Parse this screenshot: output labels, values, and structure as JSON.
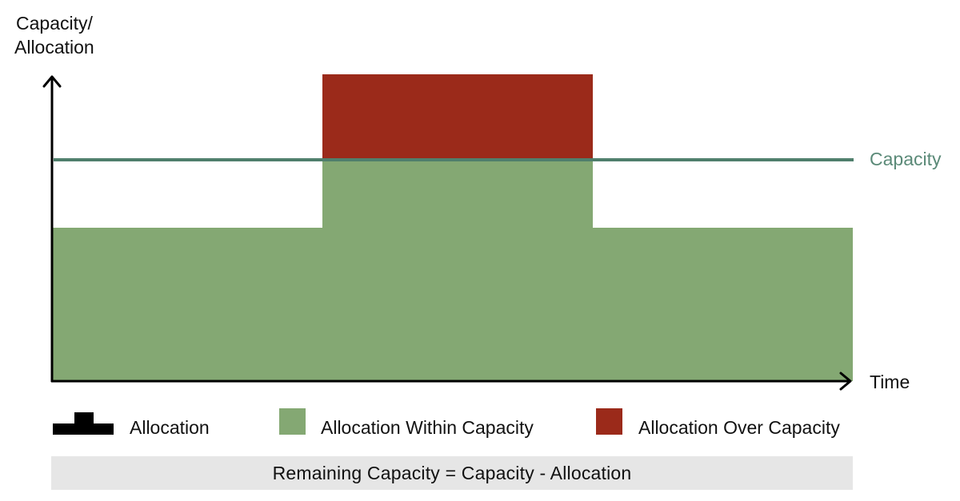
{
  "axes": {
    "y_label_line1": "Capacity/",
    "y_label_line2": "Allocation",
    "x_label": "Time"
  },
  "capacity_label": "Capacity",
  "legend": {
    "allocation": "Allocation",
    "within": "Allocation Within Capacity",
    "over": "Allocation Over Capacity"
  },
  "formula": "Remaining Capacity = Capacity - Allocation",
  "colors": {
    "within": "#84a873",
    "over": "#9b2a1a",
    "capacity_line": "#4f7f6c",
    "capacity_text": "#5b8a78",
    "axis": "#000000",
    "formula_bg": "#e6e6e6"
  }
}
